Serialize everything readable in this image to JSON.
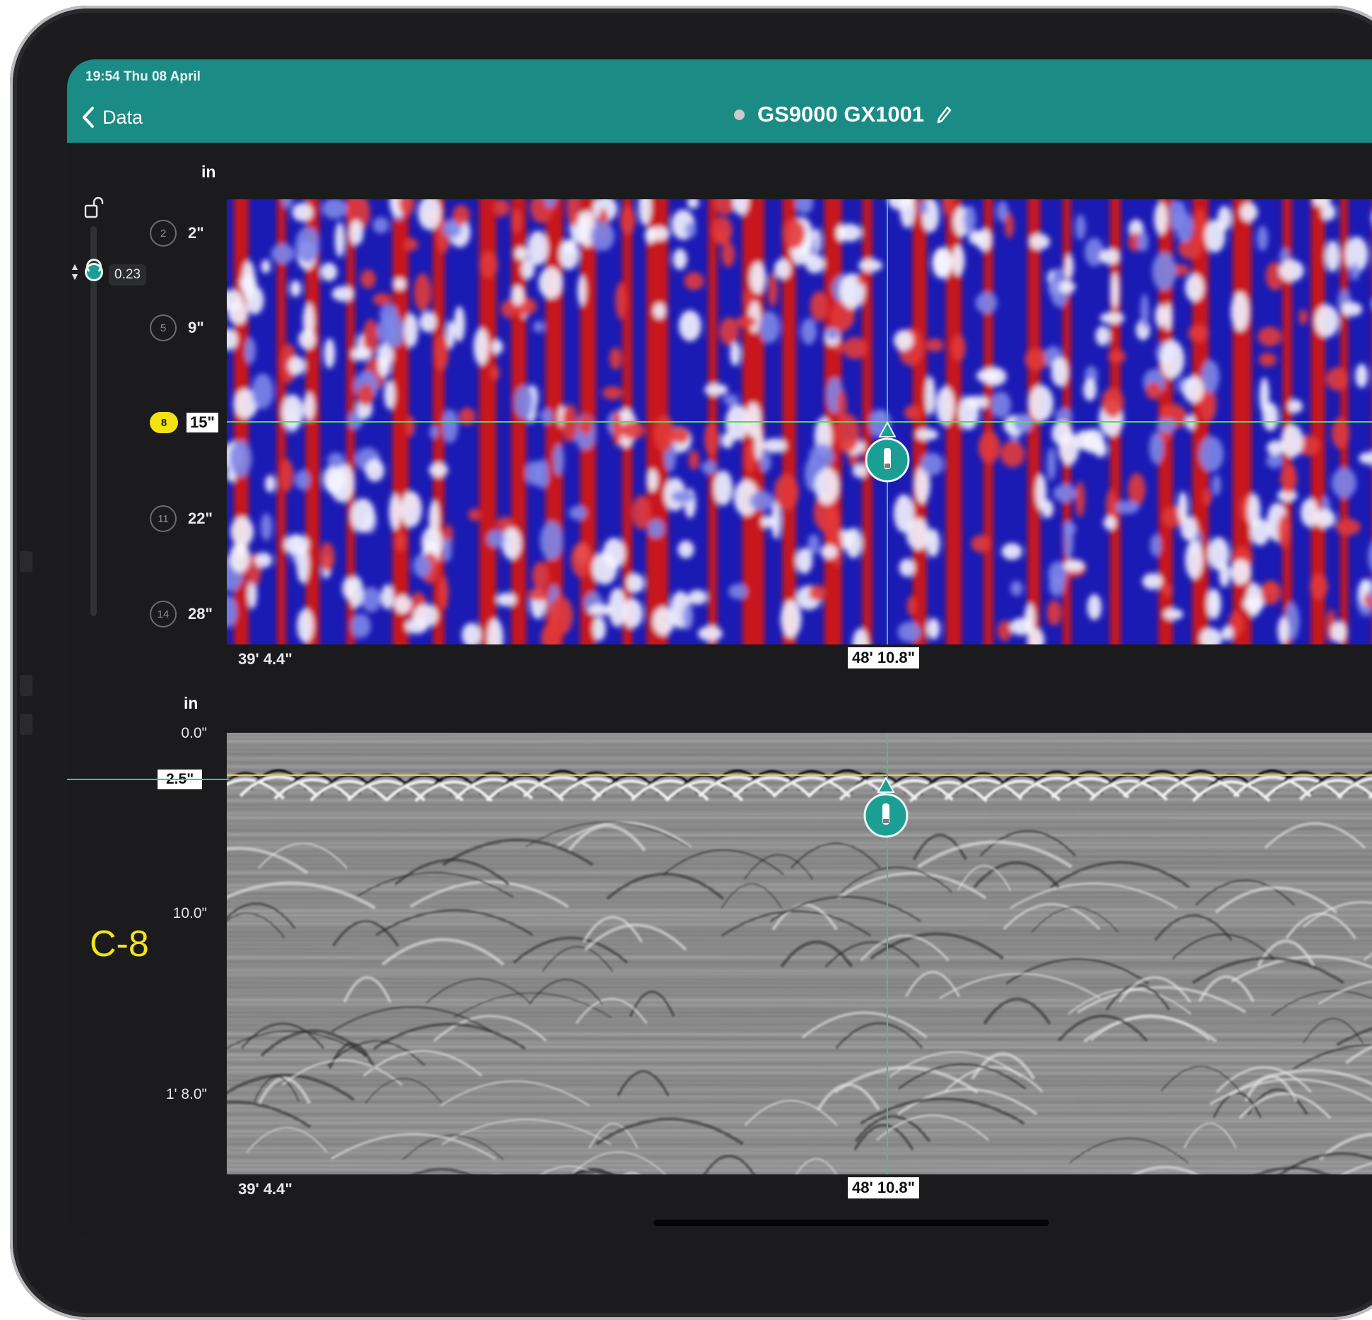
{
  "status": {
    "time": "19:54 Thu 08 April"
  },
  "nav": {
    "back_label": "Data",
    "title": "GS9000 GX1001"
  },
  "top_view": {
    "unit": "in",
    "slider_value": "0.23",
    "depth_rows": [
      {
        "badge": "2",
        "label": "2\""
      },
      {
        "badge": "5",
        "label": "9\""
      },
      {
        "badge": "8",
        "label": "15\"",
        "active": true
      },
      {
        "badge": "11",
        "label": "22\""
      },
      {
        "badge": "14",
        "label": "28\""
      }
    ],
    "x_start": "39' 4.4\"",
    "x_cursor": "48' 10.8\""
  },
  "bottom_view": {
    "unit": "in",
    "y_ticks": [
      "0.0\"",
      "10.0\"",
      "1' 8.0\""
    ],
    "y_cursor": "2.5\"",
    "x_start": "39' 4.4\"",
    "x_cursor": "48' 10.8\"",
    "layer_label": "C-8"
  },
  "colors": {
    "header": "#1a8b85",
    "accent": "#1b9e94",
    "cursor_line": "#23d08f",
    "highlight": "#f2e313",
    "cmap_high": "#c8141a",
    "cmap_low": "#1a1ab4"
  },
  "icons": [
    "back-chevron-icon",
    "pencil-icon",
    "unlock-icon",
    "marker-pin-icon"
  ]
}
